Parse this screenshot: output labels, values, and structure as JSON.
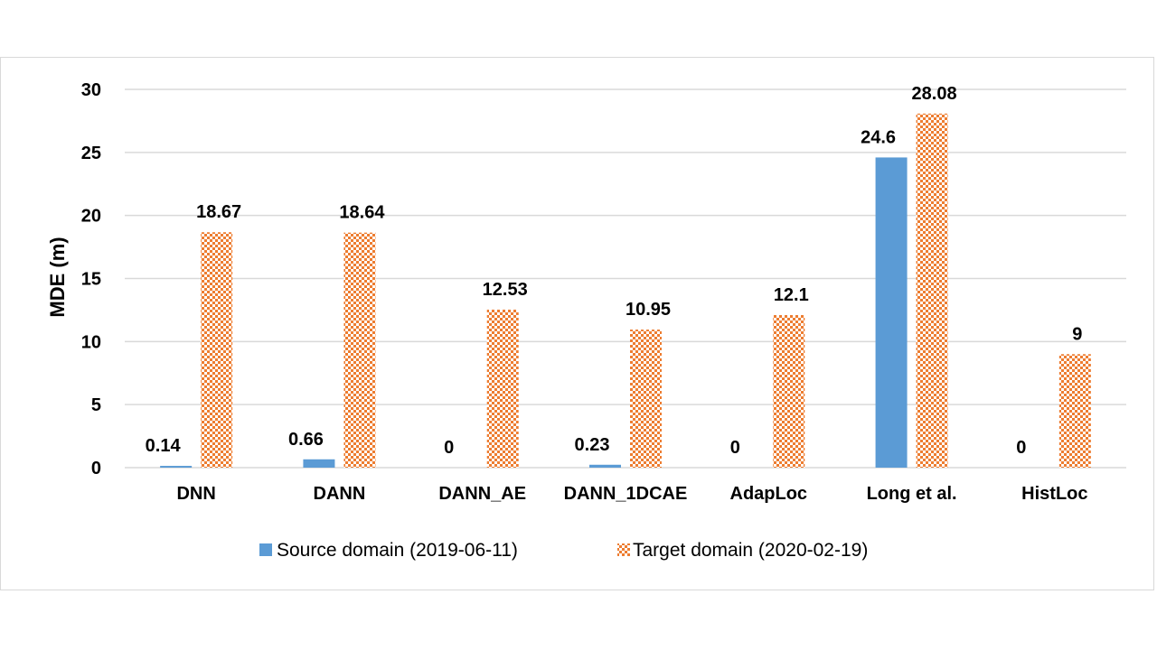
{
  "chart_data": {
    "type": "bar",
    "title": "",
    "xlabel": "",
    "ylabel": "MDE (m)",
    "ylim": [
      0,
      30
    ],
    "yticks": [
      0,
      5,
      10,
      15,
      20,
      25,
      30
    ],
    "grid": true,
    "legend_position": "bottom",
    "categories": [
      "DNN",
      "DANN",
      "DANN_AE",
      "DANN_1DCAE",
      "AdapLoc",
      "Long et al.",
      "HistLoc"
    ],
    "series": [
      {
        "name": "Source domain (2019-06-11)",
        "values": [
          0.14,
          0.66,
          0,
          0.23,
          0,
          24.6,
          0
        ],
        "color": "#5b9bd5",
        "pattern": "solid"
      },
      {
        "name": "Target domain (2020-02-19)",
        "values": [
          18.67,
          18.64,
          12.53,
          10.95,
          12.1,
          28.08,
          9
        ],
        "color": "#ed7d31",
        "pattern": "checker"
      }
    ]
  }
}
